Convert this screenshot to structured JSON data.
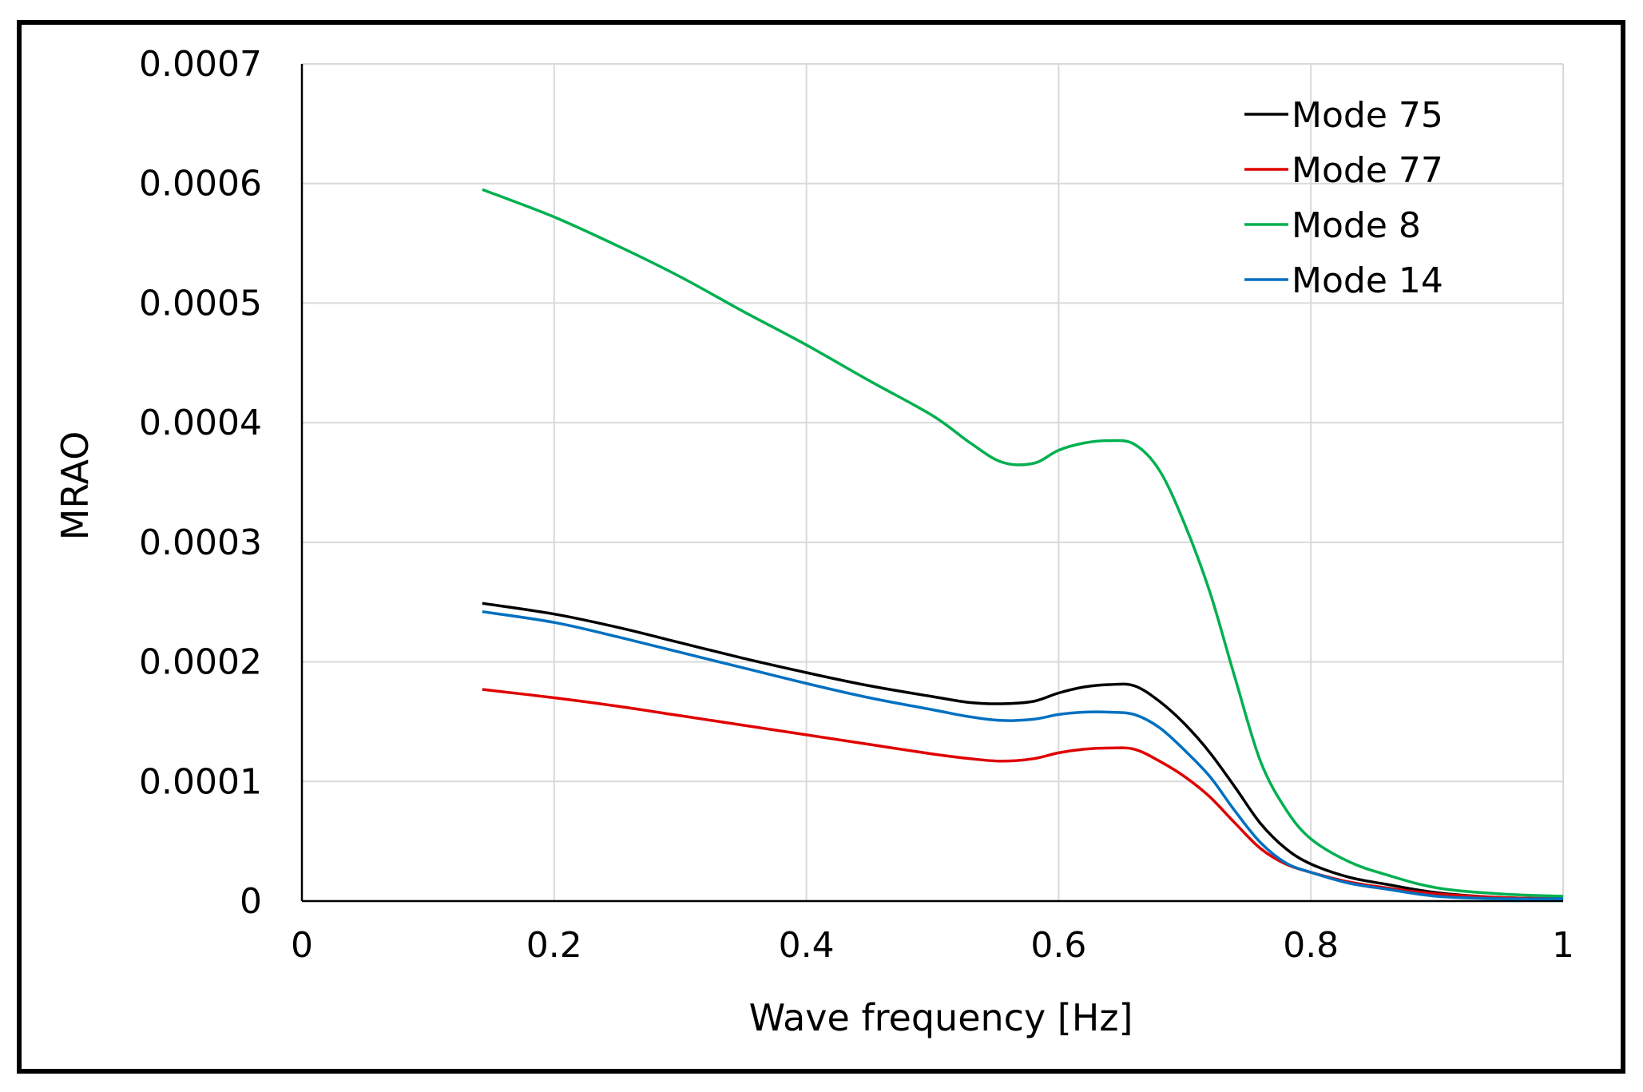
{
  "chart_data": {
    "type": "line",
    "title": "",
    "xlabel": "Wave frequency [Hz]",
    "ylabel": "MRAO",
    "xlim": [
      0,
      1
    ],
    "ylim": [
      0,
      0.0007
    ],
    "x_ticks": [
      0,
      0.2,
      0.4,
      0.6,
      0.8,
      1
    ],
    "x_tick_labels": [
      "0",
      "0.2",
      "0.4",
      "0.6",
      "0.8",
      "1"
    ],
    "y_ticks": [
      0,
      0.0001,
      0.0002,
      0.0003,
      0.0004,
      0.0005,
      0.0006,
      0.0007
    ],
    "y_tick_labels": [
      "0",
      "0.0001",
      "0.0002",
      "0.0003",
      "0.0004",
      "0.0005",
      "0.0006",
      "0.0007"
    ],
    "grid": true,
    "legend_position": "top-right",
    "x": [
      0.143,
      0.2,
      0.25,
      0.3,
      0.35,
      0.4,
      0.45,
      0.5,
      0.53,
      0.555,
      0.58,
      0.6,
      0.62,
      0.64,
      0.66,
      0.68,
      0.7,
      0.72,
      0.74,
      0.76,
      0.78,
      0.8,
      0.83,
      0.86,
      0.9,
      0.95,
      1.0
    ],
    "series": [
      {
        "name": "Mode 75",
        "color": "#000000",
        "values": [
          0.000249,
          0.00024,
          0.000229,
          0.000216,
          0.000203,
          0.000191,
          0.00018,
          0.000171,
          0.000166,
          0.000165,
          0.000167,
          0.000174,
          0.000179,
          0.000181,
          0.00018,
          0.000167,
          0.000148,
          0.000124,
          9.5e-05,
          6.5e-05,
          4.4e-05,
          3.1e-05,
          2e-05,
          1.4e-05,
          7e-06,
          3e-06,
          2e-06
        ]
      },
      {
        "name": "Mode 77",
        "color": "#e00000",
        "values": [
          0.000177,
          0.00017,
          0.000163,
          0.000155,
          0.000147,
          0.000139,
          0.000131,
          0.000123,
          0.000119,
          0.000117,
          0.000119,
          0.000124,
          0.000127,
          0.000128,
          0.000127,
          0.000117,
          0.000104,
          8.7e-05,
          6.5e-05,
          4.4e-05,
          3.1e-05,
          2.4e-05,
          1.6e-05,
          1.1e-05,
          6e-06,
          3e-06,
          2e-06
        ]
      },
      {
        "name": "Mode 8",
        "color": "#00b050",
        "values": [
          0.000595,
          0.000572,
          0.000548,
          0.000522,
          0.000493,
          0.000465,
          0.000435,
          0.000406,
          0.000383,
          0.000367,
          0.000366,
          0.000377,
          0.000383,
          0.000385,
          0.000382,
          0.00036,
          0.000315,
          0.000258,
          0.000186,
          0.000117,
          7.7e-05,
          5.2e-05,
          3.3e-05,
          2.2e-05,
          1.1e-05,
          6e-06,
          4e-06
        ]
      },
      {
        "name": "Mode 14",
        "color": "#0070c0",
        "values": [
          0.000242,
          0.000233,
          0.000221,
          0.000208,
          0.000195,
          0.000182,
          0.00017,
          0.00016,
          0.000154,
          0.000151,
          0.000152,
          0.000156,
          0.000158,
          0.000158,
          0.000156,
          0.000145,
          0.000126,
          0.000104,
          7.5e-05,
          4.9e-05,
          3.2e-05,
          2.4e-05,
          1.5e-05,
          1e-05,
          4e-06,
          2e-06,
          2e-06
        ]
      }
    ]
  }
}
